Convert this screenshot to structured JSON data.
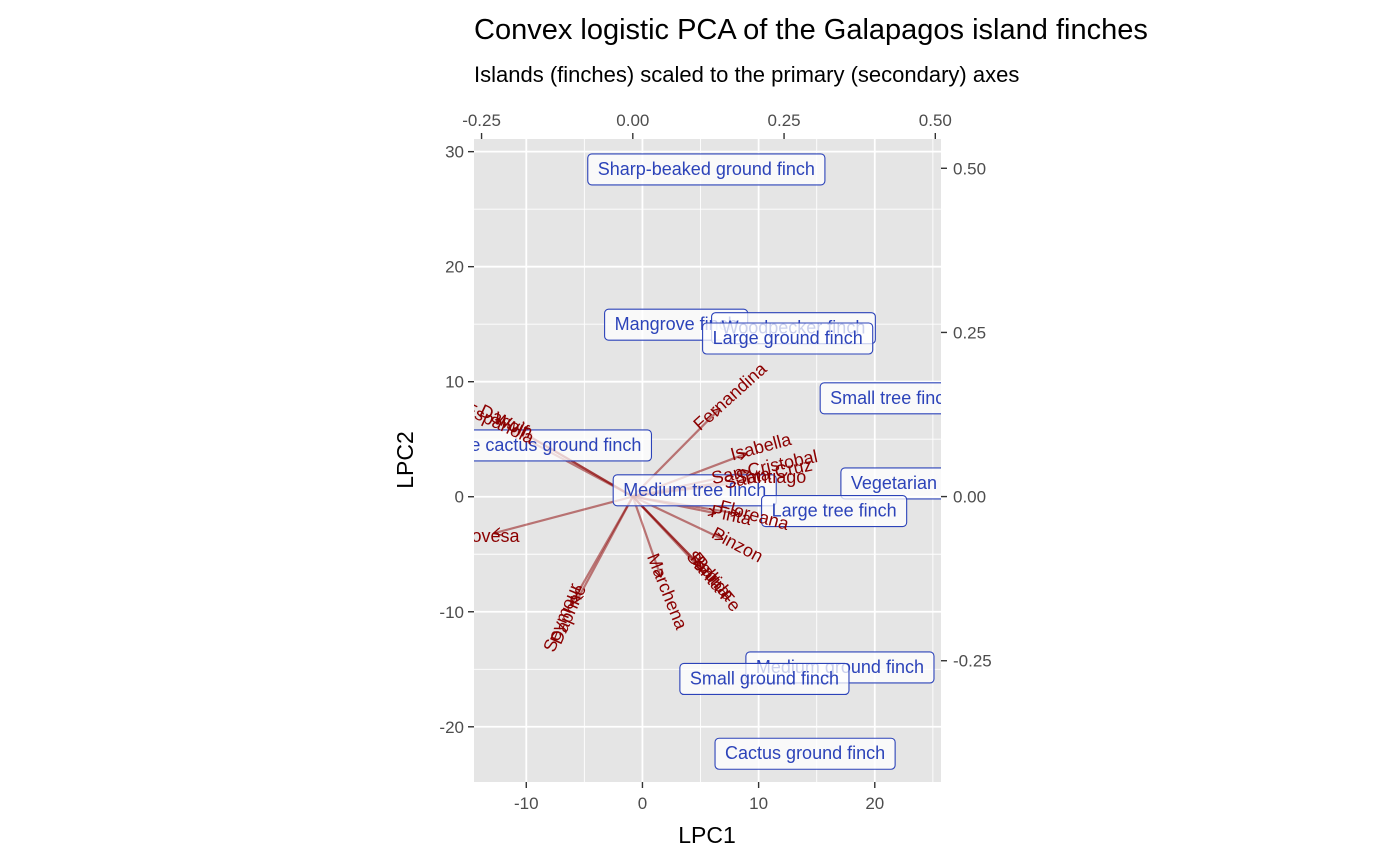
{
  "chart_data": {
    "type": "scatter",
    "title": "Convex logistic PCA of the Galapagos island finches",
    "subtitle": "Islands (finches) scaled to the primary (secondary) axes",
    "xlabel": "LPC1",
    "ylabel": "LPC2",
    "xlim": [
      -14.5,
      25.7
    ],
    "ylim": [
      -24.8,
      31.1
    ],
    "x_ticks": [
      -10,
      0,
      10,
      20
    ],
    "y_ticks": [
      -20,
      -10,
      0,
      10,
      20,
      30
    ],
    "x_tick_labels": [
      "-10",
      "0",
      "10",
      "20"
    ],
    "y_tick_labels": [
      "-20",
      "-10",
      "0",
      "10",
      "20",
      "30"
    ],
    "secondary_xlim": [
      -0.2625,
      0.5094
    ],
    "secondary_ylim": [
      -0.4347,
      0.5446
    ],
    "secondary_x_ticks": [
      -0.25,
      0,
      0.25,
      0.5
    ],
    "secondary_y_ticks": [
      -0.25,
      0,
      0.25,
      0.5
    ],
    "secondary_x_tick_labels": [
      "-0.25",
      "0.00",
      "0.25",
      "0.50"
    ],
    "secondary_y_tick_labels": [
      "-0.25",
      "0.00",
      "0.25",
      "0.50"
    ],
    "grid": true,
    "panel_background": "#e5e5e5",
    "finch_color": "#2c43b9",
    "island_color": "#8b0000",
    "finches": [
      {
        "label": "Sharp-beaked ground finch",
        "x": 5.5,
        "y": 28.5
      },
      {
        "label": "Mangrove finch",
        "x": 2.9,
        "y": 15.0
      },
      {
        "label": "Woodpecker finch",
        "x": 13.0,
        "y": 14.7
      },
      {
        "label": "Large ground finch",
        "x": 12.5,
        "y": 13.8
      },
      {
        "label": "Small tree finch",
        "x": 21.5,
        "y": 8.6
      },
      {
        "label": "Large cactus ground finch",
        "x": -9.0,
        "y": 4.5
      },
      {
        "label": "Medium tree finch",
        "x": 4.5,
        "y": 0.6
      },
      {
        "label": "Vegetarian finch",
        "x": 23.5,
        "y": 1.2
      },
      {
        "label": "Large tree finch",
        "x": 16.5,
        "y": -1.2
      },
      {
        "label": "Medium ground finch",
        "x": 17.0,
        "y": -14.8
      },
      {
        "label": "Small ground finch",
        "x": 10.5,
        "y": -15.8
      },
      {
        "label": "Cactus ground finch",
        "x": 14.0,
        "y": -22.3
      }
    ],
    "islands": [
      {
        "label": "Fernandina",
        "x": 0.162,
        "y": 0.151,
        "angle": -42
      },
      {
        "label": "Isabella",
        "x": 0.212,
        "y": 0.074,
        "angle": -15
      },
      {
        "label": "San Cristobal",
        "x": 0.218,
        "y": 0.043,
        "angle": -12
      },
      {
        "label": "Santa Cruz",
        "x": 0.224,
        "y": 0.033,
        "angle": -12
      },
      {
        "label": "Santiago",
        "x": 0.228,
        "y": 0.028,
        "angle": 0
      },
      {
        "label": "Floreana",
        "x": 0.2,
        "y": -0.03,
        "angle": 15
      },
      {
        "label": "Pinta",
        "x": 0.162,
        "y": -0.03,
        "angle": 12
      },
      {
        "label": "Pinzon",
        "x": 0.172,
        "y": -0.075,
        "angle": 28
      },
      {
        "label": "Rabida",
        "x": 0.13,
        "y": -0.123,
        "angle": 50
      },
      {
        "label": "Santa Fe",
        "x": 0.132,
        "y": -0.13,
        "angle": 50
      },
      {
        "label": "Baltra",
        "x": 0.13,
        "y": -0.123,
        "angle": 50
      },
      {
        "label": "Marchena",
        "x": 0.055,
        "y": -0.145,
        "angle": 68
      },
      {
        "label": "Seymour",
        "x": -0.115,
        "y": -0.185,
        "angle": -68
      },
      {
        "label": "Daphne",
        "x": -0.105,
        "y": -0.18,
        "angle": -66
      },
      {
        "label": "Genovesa",
        "x": -0.255,
        "y": -0.062,
        "angle": 0
      },
      {
        "label": "Wolf",
        "x": -0.202,
        "y": 0.108,
        "angle": 25
      },
      {
        "label": "Darwin",
        "x": -0.21,
        "y": 0.113,
        "angle": 25
      },
      {
        "label": "Espanola",
        "x": -0.222,
        "y": 0.11,
        "angle": 25
      }
    ]
  }
}
